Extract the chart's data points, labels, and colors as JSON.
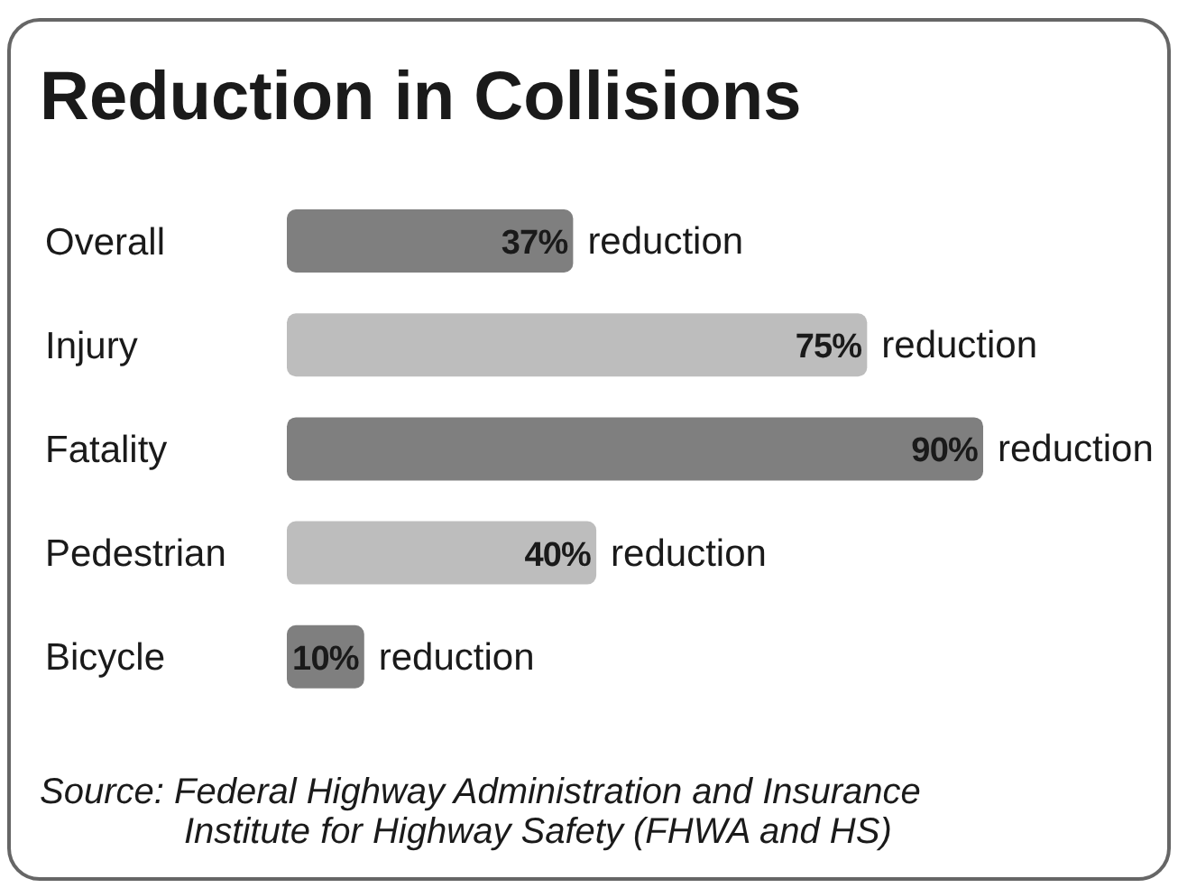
{
  "chart_data": {
    "type": "bar",
    "orientation": "horizontal",
    "title": "Reduction in Collisions",
    "categories": [
      "Overall",
      "Injury",
      "Fatality",
      "Pedestrian",
      "Bicycle"
    ],
    "values": [
      37,
      75,
      90,
      40,
      10
    ],
    "colors": [
      "#7f7f7f",
      "#bdbdbd",
      "#7f7f7f",
      "#bdbdbd",
      "#7f7f7f"
    ],
    "value_labels": [
      "37% reduction",
      "75% reduction",
      "90% reduction",
      "40% reduction",
      "10% reduction"
    ],
    "annotations": [
      "Source: Federal Highway Administration and Insurance Institute for Highway Safety (FHWA and HS)"
    ]
  }
}
